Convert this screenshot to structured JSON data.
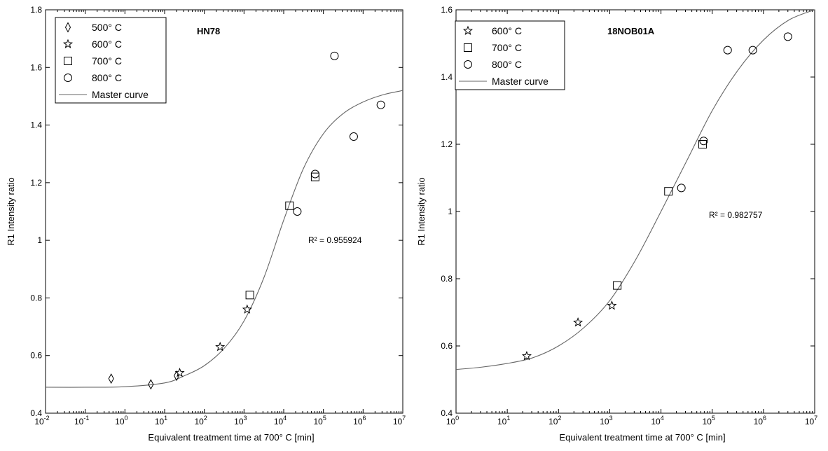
{
  "chart_data": [
    {
      "type": "scatter",
      "title": "HN78",
      "xlabel": "Equivalent treatment time at 700° C [min]",
      "ylabel": "R1 Intensity ratio",
      "xscale": "log",
      "xlim": [
        0.01,
        10000000
      ],
      "ylim": [
        0.4,
        1.8
      ],
      "x_ticks": [
        {
          "value": 0.01,
          "base": "10",
          "exp": "-2"
        },
        {
          "value": 0.1,
          "base": "10",
          "exp": "-1"
        },
        {
          "value": 1,
          "base": "10",
          "exp": "0"
        },
        {
          "value": 10,
          "base": "10",
          "exp": "1"
        },
        {
          "value": 100,
          "base": "10",
          "exp": "2"
        },
        {
          "value": 1000,
          "base": "10",
          "exp": "3"
        },
        {
          "value": 10000,
          "base": "10",
          "exp": "4"
        },
        {
          "value": 100000,
          "base": "10",
          "exp": "5"
        },
        {
          "value": 1000000,
          "base": "10",
          "exp": "6"
        },
        {
          "value": 10000000,
          "base": "10",
          "exp": "7"
        }
      ],
      "y_ticks": [
        "0.4",
        "0.6",
        "0.8",
        "1",
        "1.2",
        "1.4",
        "1.6",
        "1.8"
      ],
      "y_tick_values": [
        0.4,
        0.6,
        0.8,
        1.0,
        1.2,
        1.4,
        1.6,
        1.8
      ],
      "legend_position": "top-left",
      "r2_text": "R² = 0.955924",
      "series": [
        {
          "name": "500° C",
          "marker": "diamond",
          "x": [
            0.45,
            4.5,
            20
          ],
          "y": [
            0.52,
            0.5,
            0.53
          ]
        },
        {
          "name": "600° C",
          "marker": "star",
          "x": [
            24,
            250,
            1200
          ],
          "y": [
            0.54,
            0.63,
            0.76
          ]
        },
        {
          "name": "700° C",
          "marker": "square",
          "x": [
            1400,
            14000,
            62000
          ],
          "y": [
            0.81,
            1.12,
            1.22
          ]
        },
        {
          "name": "800° C",
          "marker": "circle",
          "x": [
            22000,
            62000,
            190000,
            580000,
            2800000
          ],
          "y": [
            1.1,
            1.23,
            1.64,
            1.36,
            1.47
          ]
        }
      ],
      "master_curve": {
        "name": "Master curve",
        "x": [
          0.01,
          0.1,
          1,
          10,
          31.6,
          100,
          316,
          1000,
          3162,
          10000,
          31623,
          100000,
          316228,
          1000000,
          3162278,
          10000000
        ],
        "y": [
          0.49,
          0.49,
          0.492,
          0.505,
          0.53,
          0.565,
          0.625,
          0.72,
          0.87,
          1.07,
          1.25,
          1.37,
          1.44,
          1.48,
          1.505,
          1.52
        ]
      }
    },
    {
      "type": "scatter",
      "title": "18NOB01A",
      "xlabel": "Equivalent treatment time at 700° C [min]",
      "ylabel": "R1 Intensity ratio",
      "xscale": "log",
      "xlim": [
        1,
        10000000
      ],
      "ylim": [
        0.4,
        1.6
      ],
      "x_ticks": [
        {
          "value": 1,
          "base": "10",
          "exp": "0"
        },
        {
          "value": 10,
          "base": "10",
          "exp": "1"
        },
        {
          "value": 100,
          "base": "10",
          "exp": "2"
        },
        {
          "value": 1000,
          "base": "10",
          "exp": "3"
        },
        {
          "value": 10000,
          "base": "10",
          "exp": "4"
        },
        {
          "value": 100000,
          "base": "10",
          "exp": "5"
        },
        {
          "value": 1000000,
          "base": "10",
          "exp": "6"
        },
        {
          "value": 10000000,
          "base": "10",
          "exp": "7"
        }
      ],
      "y_ticks": [
        "0.4",
        "0.6",
        "0.8",
        "1",
        "1.2",
        "1.4",
        "1.6"
      ],
      "y_tick_values": [
        0.4,
        0.6,
        0.8,
        1.0,
        1.2,
        1.4,
        1.6
      ],
      "legend_position": "top-left",
      "r2_text": "R² = 0.982757",
      "series": [
        {
          "name": "600° C",
          "marker": "star",
          "x": [
            24,
            240,
            1100
          ],
          "y": [
            0.57,
            0.67,
            0.72
          ]
        },
        {
          "name": "700° C",
          "marker": "square",
          "x": [
            1400,
            14000,
            65000
          ],
          "y": [
            0.78,
            1.06,
            1.2
          ]
        },
        {
          "name": "800° C",
          "marker": "circle",
          "x": [
            25000,
            68000,
            200000,
            620000,
            3000000
          ],
          "y": [
            1.07,
            1.21,
            1.48,
            1.48,
            1.52
          ]
        }
      ],
      "master_curve": {
        "name": "Master curve",
        "x": [
          1,
          3.16,
          10,
          31.6,
          100,
          316,
          1000,
          3162,
          10000,
          31623,
          100000,
          316228,
          1000000,
          3162278,
          10000000
        ],
        "y": [
          0.53,
          0.537,
          0.548,
          0.565,
          0.6,
          0.655,
          0.735,
          0.855,
          1.0,
          1.15,
          1.3,
          1.42,
          1.51,
          1.57,
          1.6
        ]
      }
    }
  ]
}
